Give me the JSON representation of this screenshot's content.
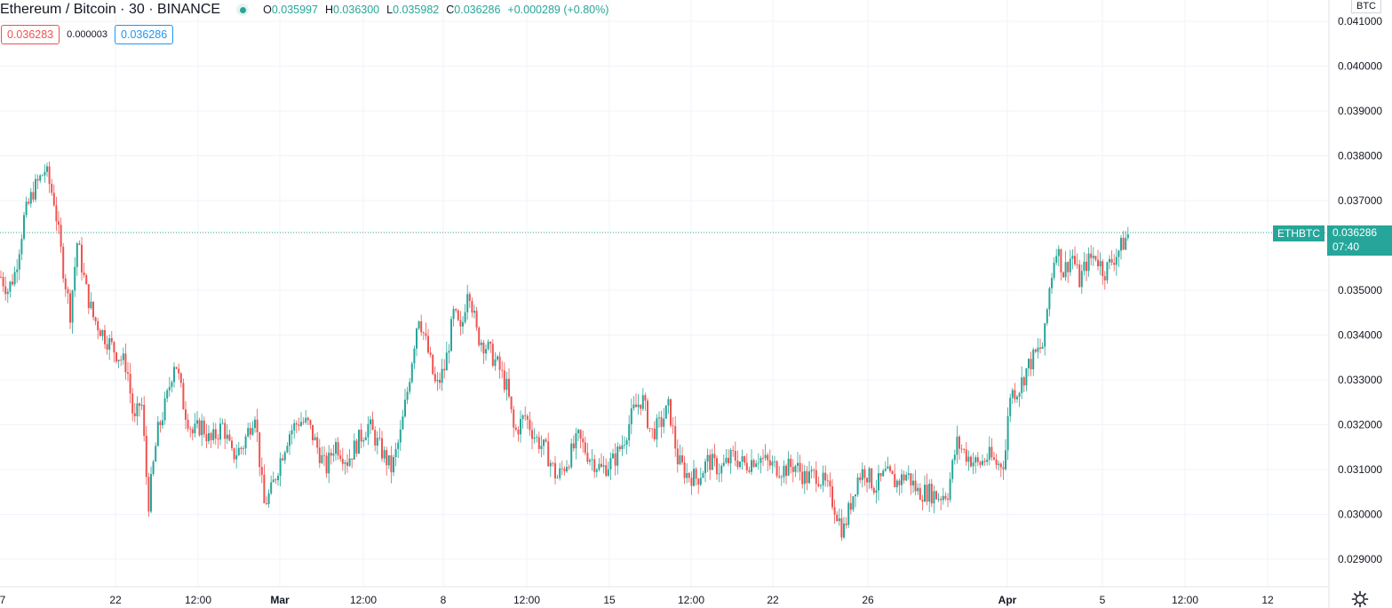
{
  "header": {
    "symbol_title": "Ethereum / Bitcoin · 30 · BINANCE",
    "ohlc": {
      "open_label": "O",
      "open": "0.035997",
      "high_label": "H",
      "high": "0.036300",
      "low_label": "L",
      "low": "0.035982",
      "close_label": "C",
      "close": "0.036286",
      "change": "+0.000289 (+0.80%)"
    },
    "sell_price": "0.036283",
    "spread": "0.000003",
    "buy_price": "0.036286"
  },
  "price_axis": {
    "currency_label": "BTC",
    "ticks": [
      "0.041000",
      "0.040000",
      "0.039000",
      "0.038000",
      "0.037000",
      "0.035000",
      "0.034000",
      "0.033000",
      "0.032000",
      "0.031000",
      "0.030000",
      "0.029000"
    ]
  },
  "time_axis": {
    "labels": [
      "7",
      "22",
      "12:00",
      "Mar",
      "12:00",
      "8",
      "12:00",
      "15",
      "12:00",
      "22",
      "26",
      "Apr",
      "5",
      "12:00",
      "12"
    ]
  },
  "last_price_tag": {
    "symbol": "ETHBTC",
    "price": "0.036286",
    "countdown": "07:40"
  },
  "colors": {
    "up": "#26a69a",
    "down": "#ef5350",
    "grid": "#f0f3fa",
    "axis_text": "#131722"
  },
  "icons": {
    "settings": "gear-icon"
  },
  "chart_data": {
    "type": "candlestick",
    "instrument": "ETHBTC",
    "ylim": [
      0.0284,
      0.0413
    ],
    "grid": true,
    "series_path": [
      [
        0,
        0.0353
      ],
      [
        8,
        0.035
      ],
      [
        16,
        0.0354
      ],
      [
        26,
        0.0366
      ],
      [
        36,
        0.0372
      ],
      [
        50,
        0.0377
      ],
      [
        60,
        0.037
      ],
      [
        70,
        0.0355
      ],
      [
        78,
        0.0345
      ],
      [
        86,
        0.0361
      ],
      [
        96,
        0.035
      ],
      [
        104,
        0.0344
      ],
      [
        116,
        0.034
      ],
      [
        130,
        0.0336
      ],
      [
        142,
        0.0333
      ],
      [
        150,
        0.032
      ],
      [
        158,
        0.0326
      ],
      [
        166,
        0.0302
      ],
      [
        176,
        0.0318
      ],
      [
        186,
        0.0325
      ],
      [
        196,
        0.0335
      ],
      [
        206,
        0.0324
      ],
      [
        216,
        0.0318
      ],
      [
        226,
        0.032
      ],
      [
        236,
        0.0316
      ],
      [
        250,
        0.032
      ],
      [
        260,
        0.0313
      ],
      [
        272,
        0.0315
      ],
      [
        286,
        0.0323
      ],
      [
        296,
        0.0302
      ],
      [
        304,
        0.0305
      ],
      [
        314,
        0.0312
      ],
      [
        324,
        0.0318
      ],
      [
        336,
        0.0321
      ],
      [
        346,
        0.032
      ],
      [
        356,
        0.0315
      ],
      [
        366,
        0.031
      ],
      [
        376,
        0.0316
      ],
      [
        390,
        0.0312
      ],
      [
        404,
        0.0317
      ],
      [
        414,
        0.032
      ],
      [
        426,
        0.0315
      ],
      [
        440,
        0.031
      ],
      [
        450,
        0.0318
      ],
      [
        458,
        0.0328
      ],
      [
        470,
        0.0345
      ],
      [
        480,
        0.0337
      ],
      [
        490,
        0.0328
      ],
      [
        500,
        0.0333
      ],
      [
        510,
        0.0345
      ],
      [
        518,
        0.034
      ],
      [
        526,
        0.0352
      ],
      [
        536,
        0.034
      ],
      [
        548,
        0.0337
      ],
      [
        560,
        0.0333
      ],
      [
        570,
        0.0328
      ],
      [
        578,
        0.0318
      ],
      [
        590,
        0.0322
      ],
      [
        602,
        0.0317
      ],
      [
        614,
        0.0314
      ],
      [
        626,
        0.0308
      ],
      [
        638,
        0.0312
      ],
      [
        650,
        0.0317
      ],
      [
        662,
        0.0313
      ],
      [
        676,
        0.031
      ],
      [
        690,
        0.0312
      ],
      [
        700,
        0.0316
      ],
      [
        712,
        0.0323
      ],
      [
        722,
        0.0326
      ],
      [
        732,
        0.0318
      ],
      [
        742,
        0.032
      ],
      [
        752,
        0.0324
      ],
      [
        762,
        0.0312
      ],
      [
        772,
        0.0309
      ],
      [
        784,
        0.0308
      ],
      [
        796,
        0.0312
      ],
      [
        810,
        0.031
      ],
      [
        824,
        0.0313
      ],
      [
        838,
        0.0311
      ],
      [
        852,
        0.0313
      ],
      [
        866,
        0.0311
      ],
      [
        880,
        0.031
      ],
      [
        894,
        0.0311
      ],
      [
        906,
        0.0308
      ],
      [
        918,
        0.0309
      ],
      [
        930,
        0.0306
      ],
      [
        940,
        0.0301
      ],
      [
        948,
        0.0296
      ],
      [
        956,
        0.0302
      ],
      [
        964,
        0.0308
      ],
      [
        972,
        0.031
      ],
      [
        984,
        0.0306
      ],
      [
        996,
        0.0309
      ],
      [
        1008,
        0.0307
      ],
      [
        1020,
        0.0309
      ],
      [
        1032,
        0.0305
      ],
      [
        1044,
        0.0305
      ],
      [
        1056,
        0.0304
      ],
      [
        1066,
        0.0305
      ],
      [
        1076,
        0.0316
      ],
      [
        1088,
        0.0313
      ],
      [
        1100,
        0.0311
      ],
      [
        1112,
        0.0313
      ],
      [
        1122,
        0.0311
      ],
      [
        1130,
        0.0312
      ],
      [
        1136,
        0.0327
      ],
      [
        1146,
        0.0328
      ],
      [
        1156,
        0.0333
      ],
      [
        1166,
        0.0336
      ],
      [
        1174,
        0.0338
      ],
      [
        1180,
        0.035
      ],
      [
        1188,
        0.036
      ],
      [
        1196,
        0.0354
      ],
      [
        1206,
        0.0358
      ],
      [
        1214,
        0.0352
      ],
      [
        1222,
        0.0356
      ],
      [
        1232,
        0.0358
      ],
      [
        1242,
        0.0354
      ],
      [
        1252,
        0.0357
      ],
      [
        1262,
        0.036
      ],
      [
        1270,
        0.03629
      ]
    ],
    "last_price": 0.036286
  }
}
